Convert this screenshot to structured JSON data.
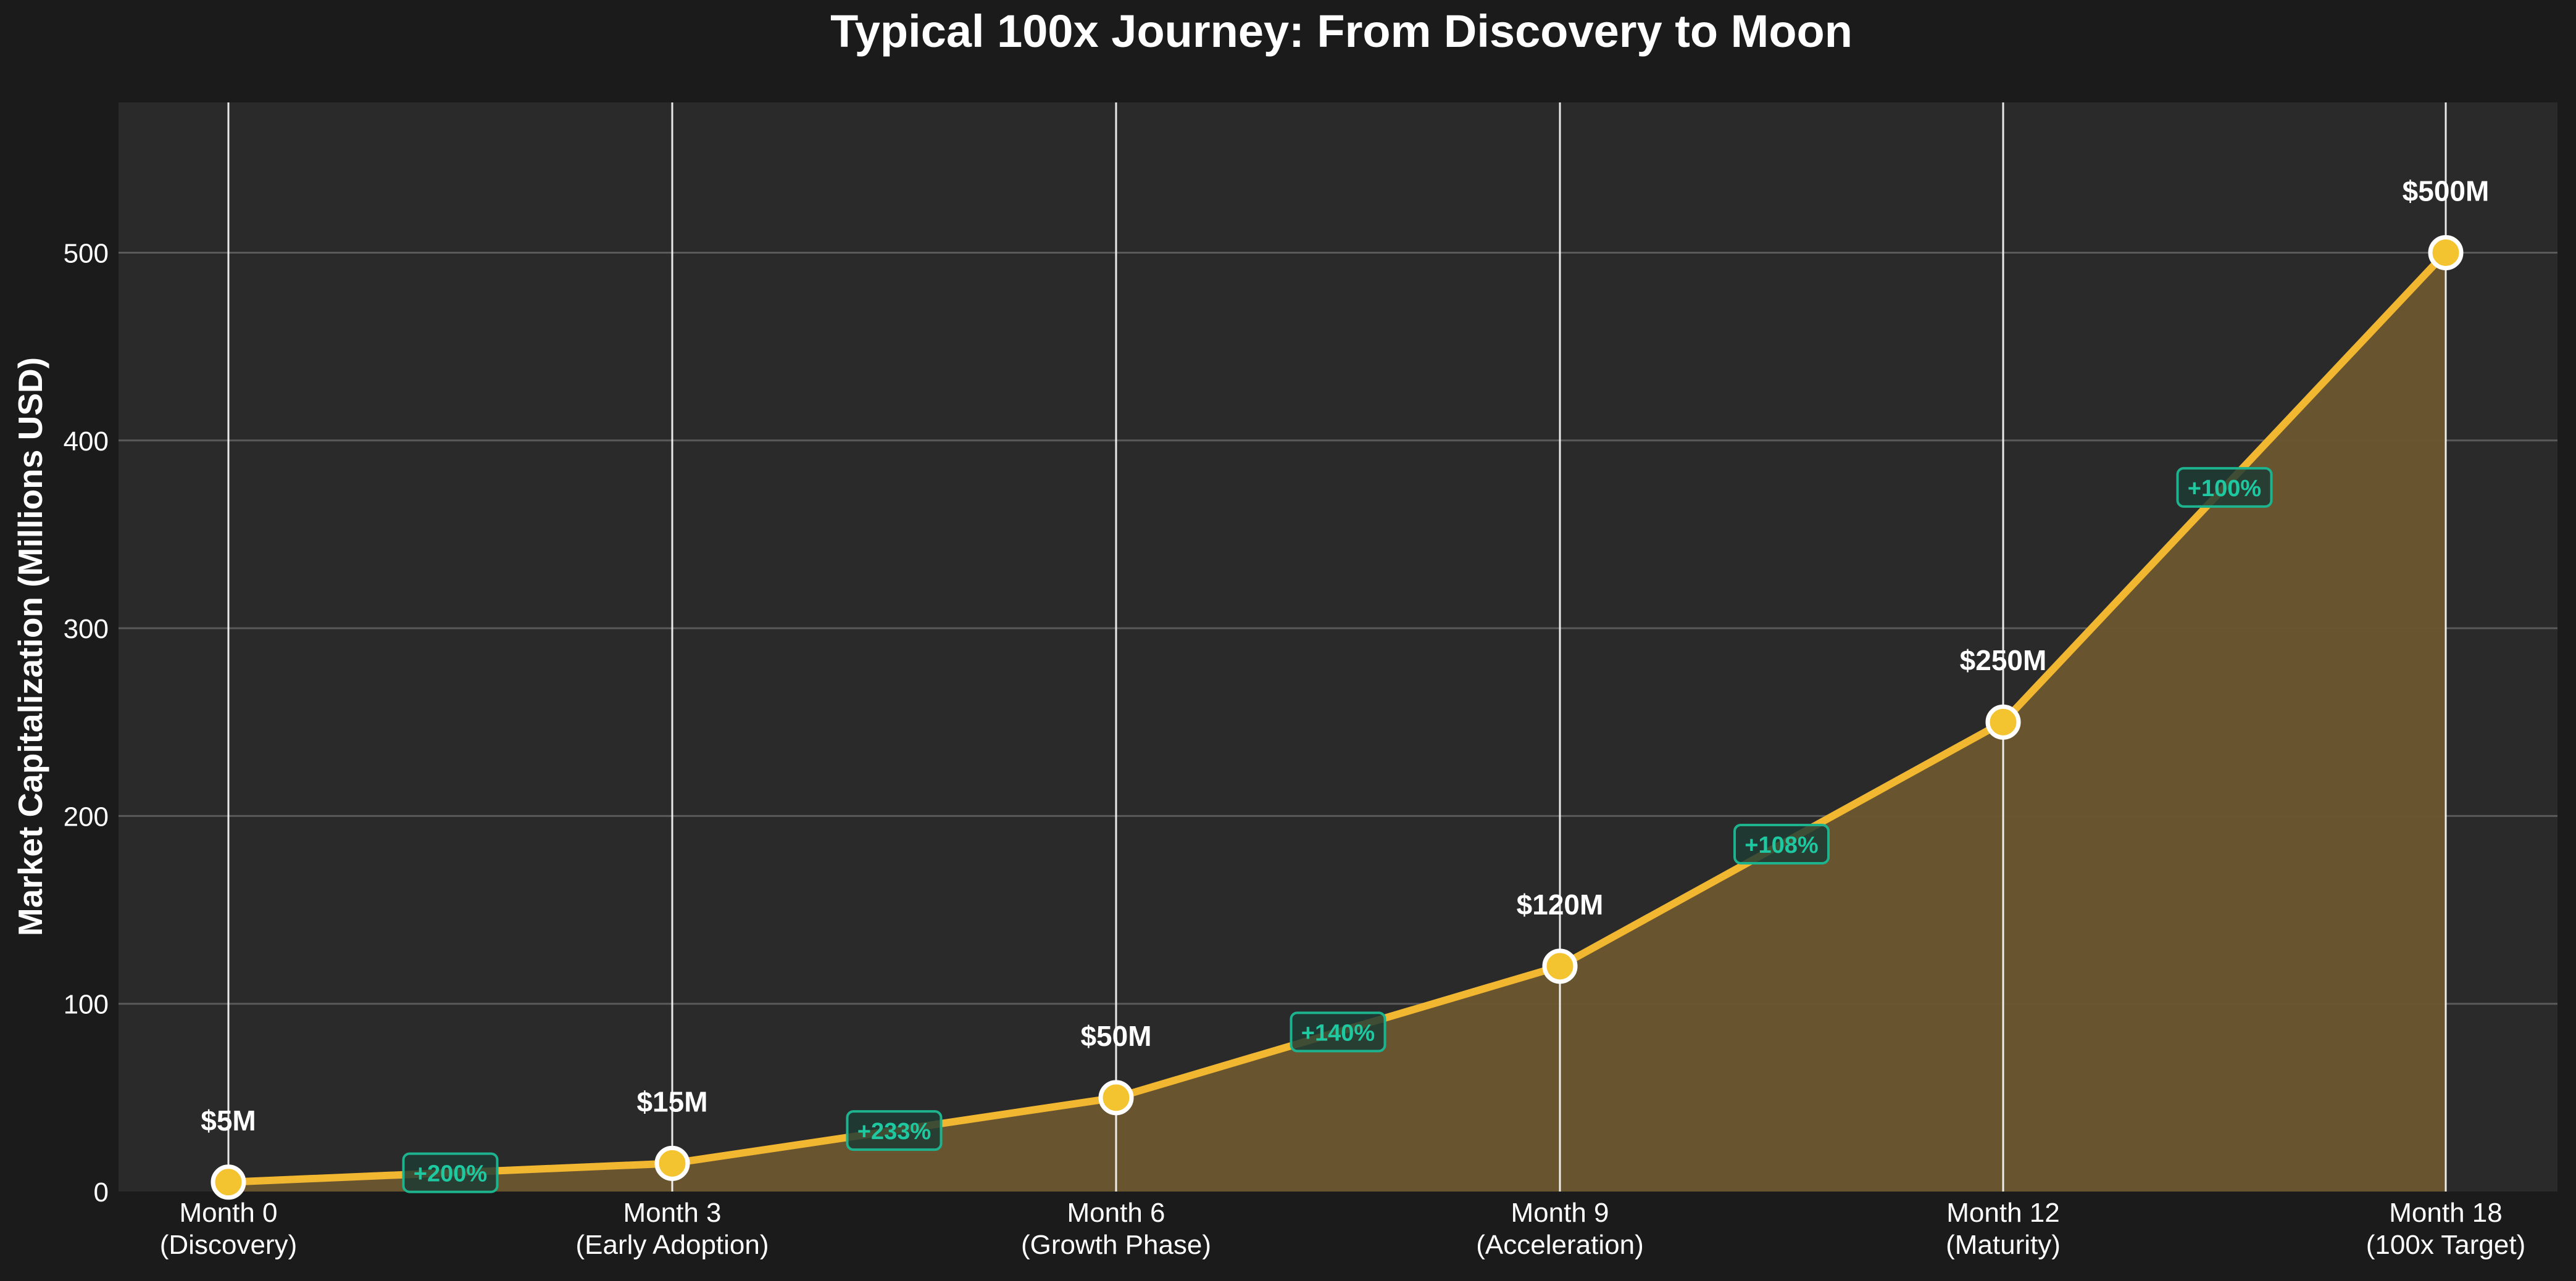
{
  "chart_data": {
    "type": "area",
    "title": "Typical 100x Journey: From Discovery to Moon",
    "xlabel": "",
    "ylabel": "Market Capitalization (Millions USD)",
    "categories": [
      [
        "Month 0",
        "(Discovery)"
      ],
      [
        "Month 3",
        "(Early Adoption)"
      ],
      [
        "Month 6",
        "(Growth Phase)"
      ],
      [
        "Month 9",
        "(Acceleration)"
      ],
      [
        "Month 12",
        "(Maturity)"
      ],
      [
        "Month 18",
        "(100x Target)"
      ]
    ],
    "values": [
      5,
      15,
      50,
      120,
      250,
      500
    ],
    "value_labels": [
      "$5M",
      "$15M",
      "$50M",
      "$120M",
      "$250M",
      "$500M"
    ],
    "growth_labels": [
      "+200%",
      "+233%",
      "+140%",
      "+108%",
      "+100%"
    ],
    "ylim": [
      0,
      580
    ],
    "yticks": [
      0,
      100,
      200,
      300,
      400,
      500
    ],
    "grid": true,
    "legend": "none",
    "colors": {
      "background": "#1b1b1b",
      "plot_background": "#2a2a2a",
      "line": "#f2b731",
      "fill": "#6b5730",
      "marker_fill": "#f4c430",
      "marker_edge": "#ffffff",
      "growth_text": "#1ec8a0",
      "growth_box_fill": "#1f3b34",
      "growth_box_edge": "#1db38e",
      "text": "#ffffff",
      "gridline": "#5a5a5a",
      "vline": "#ffffff"
    }
  }
}
